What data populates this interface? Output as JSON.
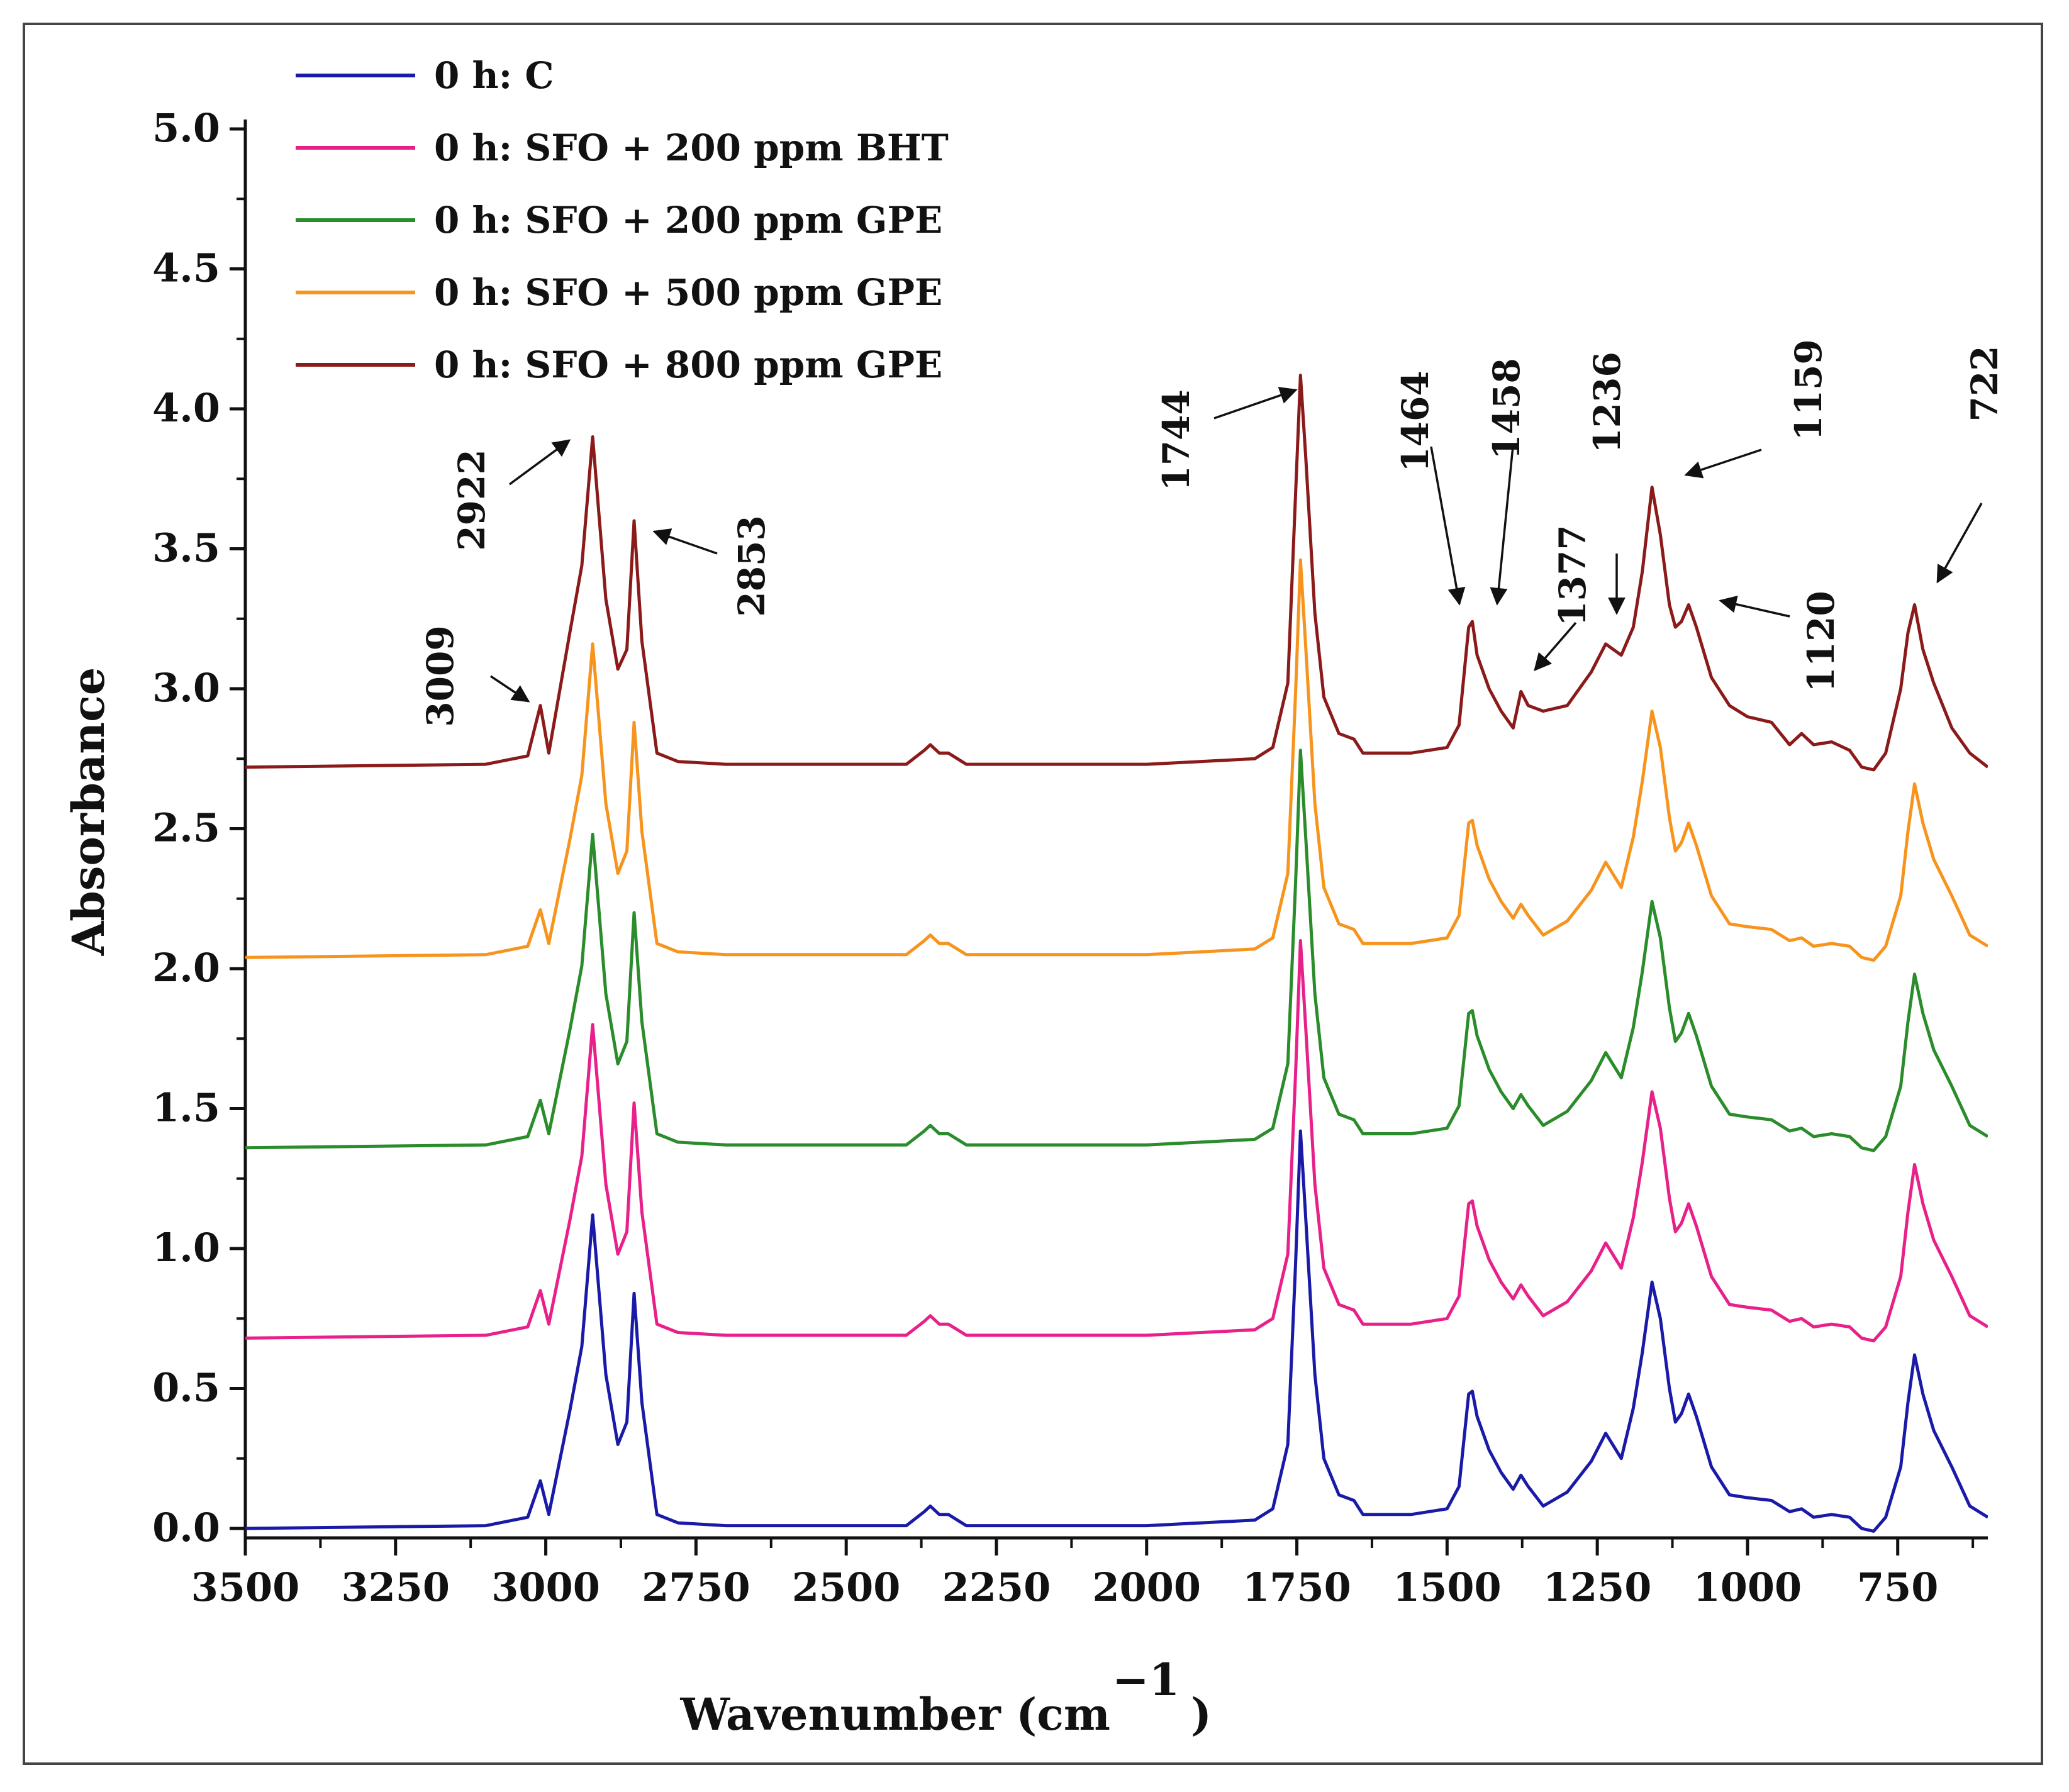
{
  "chart_data": {
    "type": "line",
    "xlabel": "Wavenumber (cm",
    "xlabel_superscript": "−1",
    "xlabel_close": ")",
    "ylabel": "Absorbance",
    "xlim": [
      3500,
      600
    ],
    "ylim": [
      -0.05,
      5.0
    ],
    "x_reversed": true,
    "grid": false,
    "legend_position": "top-left",
    "x_ticks": [
      3500,
      3250,
      3000,
      2750,
      2500,
      2250,
      2000,
      1750,
      1500,
      1250,
      1000,
      750
    ],
    "x_tick_labels": [
      "3500",
      "3250",
      "3000",
      "2750",
      "2500",
      "2250",
      "2000",
      "1750",
      "1500",
      "1250",
      "1000",
      "750"
    ],
    "y_ticks": [
      0.0,
      0.5,
      1.0,
      1.5,
      2.0,
      2.5,
      3.0,
      3.5,
      4.0,
      4.5,
      5.0
    ],
    "y_tick_labels": [
      "0.0",
      "0.5",
      "1.0",
      "1.5",
      "2.0",
      "2.5",
      "3.0",
      "3.5",
      "4.0",
      "4.5",
      "5.0"
    ],
    "x": [
      3500,
      3100,
      3030,
      3009,
      2995,
      2960,
      2940,
      2922,
      2900,
      2880,
      2865,
      2853,
      2840,
      2815,
      2780,
      2700,
      2400,
      2370,
      2360,
      2345,
      2330,
      2300,
      2000,
      1820,
      1790,
      1765,
      1752,
      1744,
      1735,
      1720,
      1705,
      1680,
      1655,
      1640,
      1560,
      1500,
      1480,
      1464,
      1458,
      1450,
      1430,
      1410,
      1390,
      1377,
      1365,
      1340,
      1300,
      1260,
      1236,
      1210,
      1190,
      1175,
      1159,
      1145,
      1130,
      1120,
      1110,
      1098,
      1085,
      1060,
      1030,
      1000,
      960,
      930,
      910,
      890,
      860,
      830,
      810,
      790,
      770,
      745,
      733,
      722,
      708,
      690,
      660,
      630,
      600
    ],
    "series": [
      {
        "name": "0 h: C",
        "color": "#1a1aa8",
        "offset": 0.0,
        "values": [
          0.0,
          0.01,
          0.04,
          0.17,
          0.05,
          0.42,
          0.65,
          1.12,
          0.55,
          0.3,
          0.38,
          0.84,
          0.45,
          0.05,
          0.02,
          0.01,
          0.01,
          0.06,
          0.08,
          0.05,
          0.05,
          0.01,
          0.01,
          0.03,
          0.07,
          0.3,
          0.95,
          1.42,
          1.1,
          0.55,
          0.25,
          0.12,
          0.1,
          0.05,
          0.05,
          0.07,
          0.15,
          0.48,
          0.49,
          0.4,
          0.28,
          0.2,
          0.14,
          0.19,
          0.15,
          0.08,
          0.13,
          0.24,
          0.34,
          0.25,
          0.43,
          0.63,
          0.88,
          0.75,
          0.5,
          0.38,
          0.41,
          0.48,
          0.4,
          0.22,
          0.12,
          0.11,
          0.1,
          0.06,
          0.07,
          0.04,
          0.05,
          0.04,
          0.0,
          -0.01,
          0.04,
          0.22,
          0.45,
          0.62,
          0.48,
          0.35,
          0.22,
          0.08,
          0.04
        ]
      },
      {
        "name": "0 h: SFO + 200 ppm BHT",
        "color": "#e8208a",
        "offset": 0.68,
        "values": [
          0.0,
          0.01,
          0.04,
          0.17,
          0.05,
          0.42,
          0.65,
          1.12,
          0.55,
          0.3,
          0.38,
          0.84,
          0.45,
          0.05,
          0.02,
          0.01,
          0.01,
          0.06,
          0.08,
          0.05,
          0.05,
          0.01,
          0.01,
          0.03,
          0.07,
          0.3,
          0.95,
          1.42,
          1.1,
          0.55,
          0.25,
          0.12,
          0.1,
          0.05,
          0.05,
          0.07,
          0.15,
          0.48,
          0.49,
          0.4,
          0.28,
          0.2,
          0.14,
          0.19,
          0.15,
          0.08,
          0.13,
          0.24,
          0.34,
          0.25,
          0.43,
          0.63,
          0.88,
          0.75,
          0.5,
          0.38,
          0.41,
          0.48,
          0.4,
          0.22,
          0.12,
          0.11,
          0.1,
          0.06,
          0.07,
          0.04,
          0.05,
          0.04,
          0.0,
          -0.01,
          0.04,
          0.22,
          0.45,
          0.62,
          0.48,
          0.35,
          0.22,
          0.08,
          0.04
        ]
      },
      {
        "name": "0 h: SFO + 200 ppm GPE",
        "color": "#2a8c2a",
        "offset": 1.36,
        "values": [
          0.0,
          0.01,
          0.04,
          0.17,
          0.05,
          0.42,
          0.65,
          1.12,
          0.55,
          0.3,
          0.38,
          0.84,
          0.45,
          0.05,
          0.02,
          0.01,
          0.01,
          0.06,
          0.08,
          0.05,
          0.05,
          0.01,
          0.01,
          0.03,
          0.07,
          0.3,
          0.95,
          1.42,
          1.1,
          0.55,
          0.25,
          0.12,
          0.1,
          0.05,
          0.05,
          0.07,
          0.15,
          0.48,
          0.49,
          0.4,
          0.28,
          0.2,
          0.14,
          0.19,
          0.15,
          0.08,
          0.13,
          0.24,
          0.34,
          0.25,
          0.43,
          0.63,
          0.88,
          0.75,
          0.5,
          0.38,
          0.41,
          0.48,
          0.4,
          0.22,
          0.12,
          0.11,
          0.1,
          0.06,
          0.07,
          0.04,
          0.05,
          0.04,
          0.0,
          -0.01,
          0.04,
          0.22,
          0.45,
          0.62,
          0.48,
          0.35,
          0.22,
          0.08,
          0.04
        ]
      },
      {
        "name": "0 h: SFO + 500 ppm GPE",
        "color": "#f7941d",
        "offset": 2.04,
        "values": [
          0.0,
          0.01,
          0.04,
          0.17,
          0.05,
          0.42,
          0.65,
          1.12,
          0.55,
          0.3,
          0.38,
          0.84,
          0.45,
          0.05,
          0.02,
          0.01,
          0.01,
          0.06,
          0.08,
          0.05,
          0.05,
          0.01,
          0.01,
          0.03,
          0.07,
          0.3,
          0.95,
          1.42,
          1.1,
          0.55,
          0.25,
          0.12,
          0.1,
          0.05,
          0.05,
          0.07,
          0.15,
          0.48,
          0.49,
          0.4,
          0.28,
          0.2,
          0.14,
          0.19,
          0.15,
          0.08,
          0.13,
          0.24,
          0.34,
          0.25,
          0.43,
          0.63,
          0.88,
          0.75,
          0.5,
          0.38,
          0.41,
          0.48,
          0.4,
          0.22,
          0.12,
          0.11,
          0.1,
          0.06,
          0.07,
          0.04,
          0.05,
          0.04,
          0.0,
          -0.01,
          0.04,
          0.22,
          0.45,
          0.62,
          0.48,
          0.35,
          0.22,
          0.08,
          0.04
        ]
      },
      {
        "name": "0 h: SFO + 800 ppm GPE",
        "color": "#8b1a1a",
        "offset": 2.72,
        "values": [
          0.0,
          0.01,
          0.04,
          0.22,
          0.05,
          0.48,
          0.72,
          1.18,
          0.6,
          0.35,
          0.42,
          0.88,
          0.45,
          0.05,
          0.02,
          0.01,
          0.01,
          0.06,
          0.08,
          0.05,
          0.05,
          0.01,
          0.01,
          0.03,
          0.07,
          0.3,
          0.98,
          1.4,
          1.1,
          0.55,
          0.25,
          0.12,
          0.1,
          0.05,
          0.05,
          0.07,
          0.15,
          0.5,
          0.52,
          0.4,
          0.28,
          0.2,
          0.14,
          0.27,
          0.22,
          0.2,
          0.22,
          0.34,
          0.44,
          0.4,
          0.5,
          0.7,
          1.0,
          0.83,
          0.58,
          0.5,
          0.52,
          0.58,
          0.5,
          0.32,
          0.22,
          0.18,
          0.16,
          0.08,
          0.12,
          0.08,
          0.09,
          0.06,
          0.0,
          -0.01,
          0.05,
          0.28,
          0.48,
          0.58,
          0.42,
          0.3,
          0.14,
          0.05,
          0.0
        ]
      }
    ],
    "annotations": [
      {
        "label": "3009",
        "x": 3009
      },
      {
        "label": "2922",
        "x": 2922
      },
      {
        "label": "2853",
        "x": 2853
      },
      {
        "label": "1744",
        "x": 1744
      },
      {
        "label": "1464",
        "x": 1464
      },
      {
        "label": "1458",
        "x": 1458
      },
      {
        "label": "1377",
        "x": 1377
      },
      {
        "label": "1236",
        "x": 1236
      },
      {
        "label": "1159",
        "x": 1159
      },
      {
        "label": "1120",
        "x": 1120
      },
      {
        "label": "722",
        "x": 722
      }
    ]
  }
}
